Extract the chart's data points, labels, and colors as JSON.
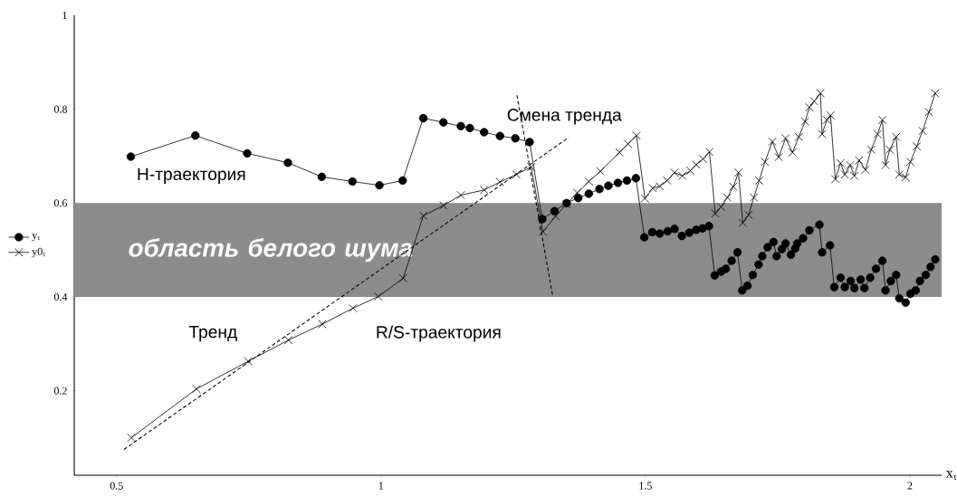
{
  "chart_data": {
    "type": "line",
    "xlabel": "x$_{τ}$",
    "xlim": [
      0.42,
      2.06
    ],
    "ylim": [
      0.02,
      1
    ],
    "xticks": [
      0.5,
      1,
      1.5,
      2
    ],
    "yticks": [
      0.2,
      0.4,
      0.6,
      0.8,
      1
    ],
    "grid": false,
    "legend": "left",
    "bands": [
      {
        "axis": "y",
        "from": 0.4,
        "to": 0.6,
        "label": "область белого шума",
        "color": "#8c8c8c"
      }
    ],
    "annotations": [
      "H-траектория",
      "Смена тренда",
      "Тренд",
      "R/S-траектория"
    ],
    "series": [
      {
        "name": "y$_{τ}$",
        "color": "#000000",
        "marker": "circle",
        "line_style": "solid",
        "x": [
          0.527,
          0.649,
          0.747,
          0.824,
          0.888,
          0.946,
          0.997,
          1.041,
          1.08,
          1.118,
          1.151,
          1.168,
          1.195,
          1.225,
          1.254,
          1.281,
          1.305,
          1.328,
          1.351,
          1.373,
          1.393,
          1.413,
          1.43,
          1.448,
          1.465,
          1.482,
          1.498,
          1.513,
          1.527,
          1.542,
          1.555,
          1.569,
          1.583,
          1.596,
          1.608,
          1.62,
          1.631,
          1.643,
          1.652,
          1.663,
          1.674,
          1.683,
          1.693,
          1.703,
          1.714,
          1.721,
          1.731,
          1.742,
          1.748,
          1.758,
          1.765,
          1.775,
          1.783,
          1.787,
          1.798,
          1.81,
          1.829,
          1.834,
          1.849,
          1.857,
          1.869,
          1.877,
          1.888,
          1.895,
          1.907,
          1.914,
          1.925,
          1.936,
          1.948,
          1.954,
          1.964,
          1.974,
          1.98,
          1.992,
          2.001,
          2.011,
          2.019,
          2.03,
          2.039,
          2.048
        ],
        "values": [
          0.699,
          0.744,
          0.706,
          0.686,
          0.656,
          0.646,
          0.638,
          0.648,
          0.781,
          0.772,
          0.764,
          0.76,
          0.751,
          0.743,
          0.738,
          0.73,
          0.566,
          0.583,
          0.6,
          0.611,
          0.62,
          0.63,
          0.637,
          0.643,
          0.648,
          0.653,
          0.527,
          0.538,
          0.535,
          0.54,
          0.545,
          0.53,
          0.537,
          0.543,
          0.546,
          0.551,
          0.446,
          0.454,
          0.46,
          0.477,
          0.495,
          0.414,
          0.424,
          0.447,
          0.469,
          0.487,
          0.506,
          0.517,
          0.487,
          0.502,
          0.514,
          0.49,
          0.503,
          0.514,
          0.525,
          0.542,
          0.554,
          0.495,
          0.51,
          0.421,
          0.441,
          0.421,
          0.434,
          0.419,
          0.437,
          0.419,
          0.441,
          0.46,
          0.477,
          0.414,
          0.434,
          0.447,
          0.397,
          0.388,
          0.407,
          0.414,
          0.434,
          0.447,
          0.464,
          0.48
        ]
      },
      {
        "name": "y0$_{τ}$",
        "color": "#000000",
        "marker": "cross",
        "line_style": "solid",
        "x": [
          0.528,
          0.651,
          0.749,
          0.825,
          0.889,
          0.947,
          0.995,
          1.042,
          1.08,
          1.118,
          1.151,
          1.195,
          1.225,
          1.256,
          1.284,
          1.306,
          1.33,
          1.351,
          1.371,
          1.393,
          1.415,
          1.451,
          1.467,
          1.483,
          1.499,
          1.514,
          1.527,
          1.541,
          1.555,
          1.57,
          1.585,
          1.596,
          1.609,
          1.621,
          1.632,
          1.643,
          1.655,
          1.666,
          1.676,
          1.684,
          1.695,
          1.705,
          1.715,
          1.726,
          1.74,
          1.752,
          1.765,
          1.778,
          1.79,
          1.802,
          1.81,
          1.819,
          1.831,
          1.834,
          1.843,
          1.85,
          1.859,
          1.869,
          1.877,
          1.887,
          1.895,
          1.904,
          1.916,
          1.927,
          1.939,
          1.948,
          1.954,
          1.962,
          1.974,
          1.98,
          1.992,
          2.001,
          2.013,
          2.024,
          2.036,
          2.048
        ],
        "values": [
          0.1,
          0.204,
          0.263,
          0.308,
          0.342,
          0.376,
          0.401,
          0.44,
          0.573,
          0.595,
          0.617,
          0.628,
          0.645,
          0.661,
          0.677,
          0.539,
          0.572,
          0.598,
          0.622,
          0.646,
          0.668,
          0.708,
          0.726,
          0.744,
          0.61,
          0.632,
          0.636,
          0.648,
          0.665,
          0.658,
          0.669,
          0.682,
          0.694,
          0.709,
          0.578,
          0.592,
          0.612,
          0.635,
          0.665,
          0.558,
          0.575,
          0.612,
          0.648,
          0.688,
          0.731,
          0.698,
          0.738,
          0.708,
          0.741,
          0.774,
          0.804,
          0.817,
          0.834,
          0.747,
          0.777,
          0.787,
          0.651,
          0.685,
          0.661,
          0.681,
          0.658,
          0.691,
          0.671,
          0.714,
          0.747,
          0.777,
          0.681,
          0.714,
          0.741,
          0.661,
          0.655,
          0.688,
          0.721,
          0.754,
          0.794,
          0.834
        ]
      },
      {
        "type": "line",
        "color": "#000000",
        "marker": "none",
        "line_style": "dashed",
        "x": [
          0.514,
          1.355
        ],
        "values": [
          0.075,
          0.74
        ]
      },
      {
        "type": "line",
        "color": "#000000",
        "marker": "none",
        "line_style": "dashed",
        "x": [
          1.257,
          1.325
        ],
        "values": [
          0.83,
          0.4
        ]
      }
    ]
  }
}
